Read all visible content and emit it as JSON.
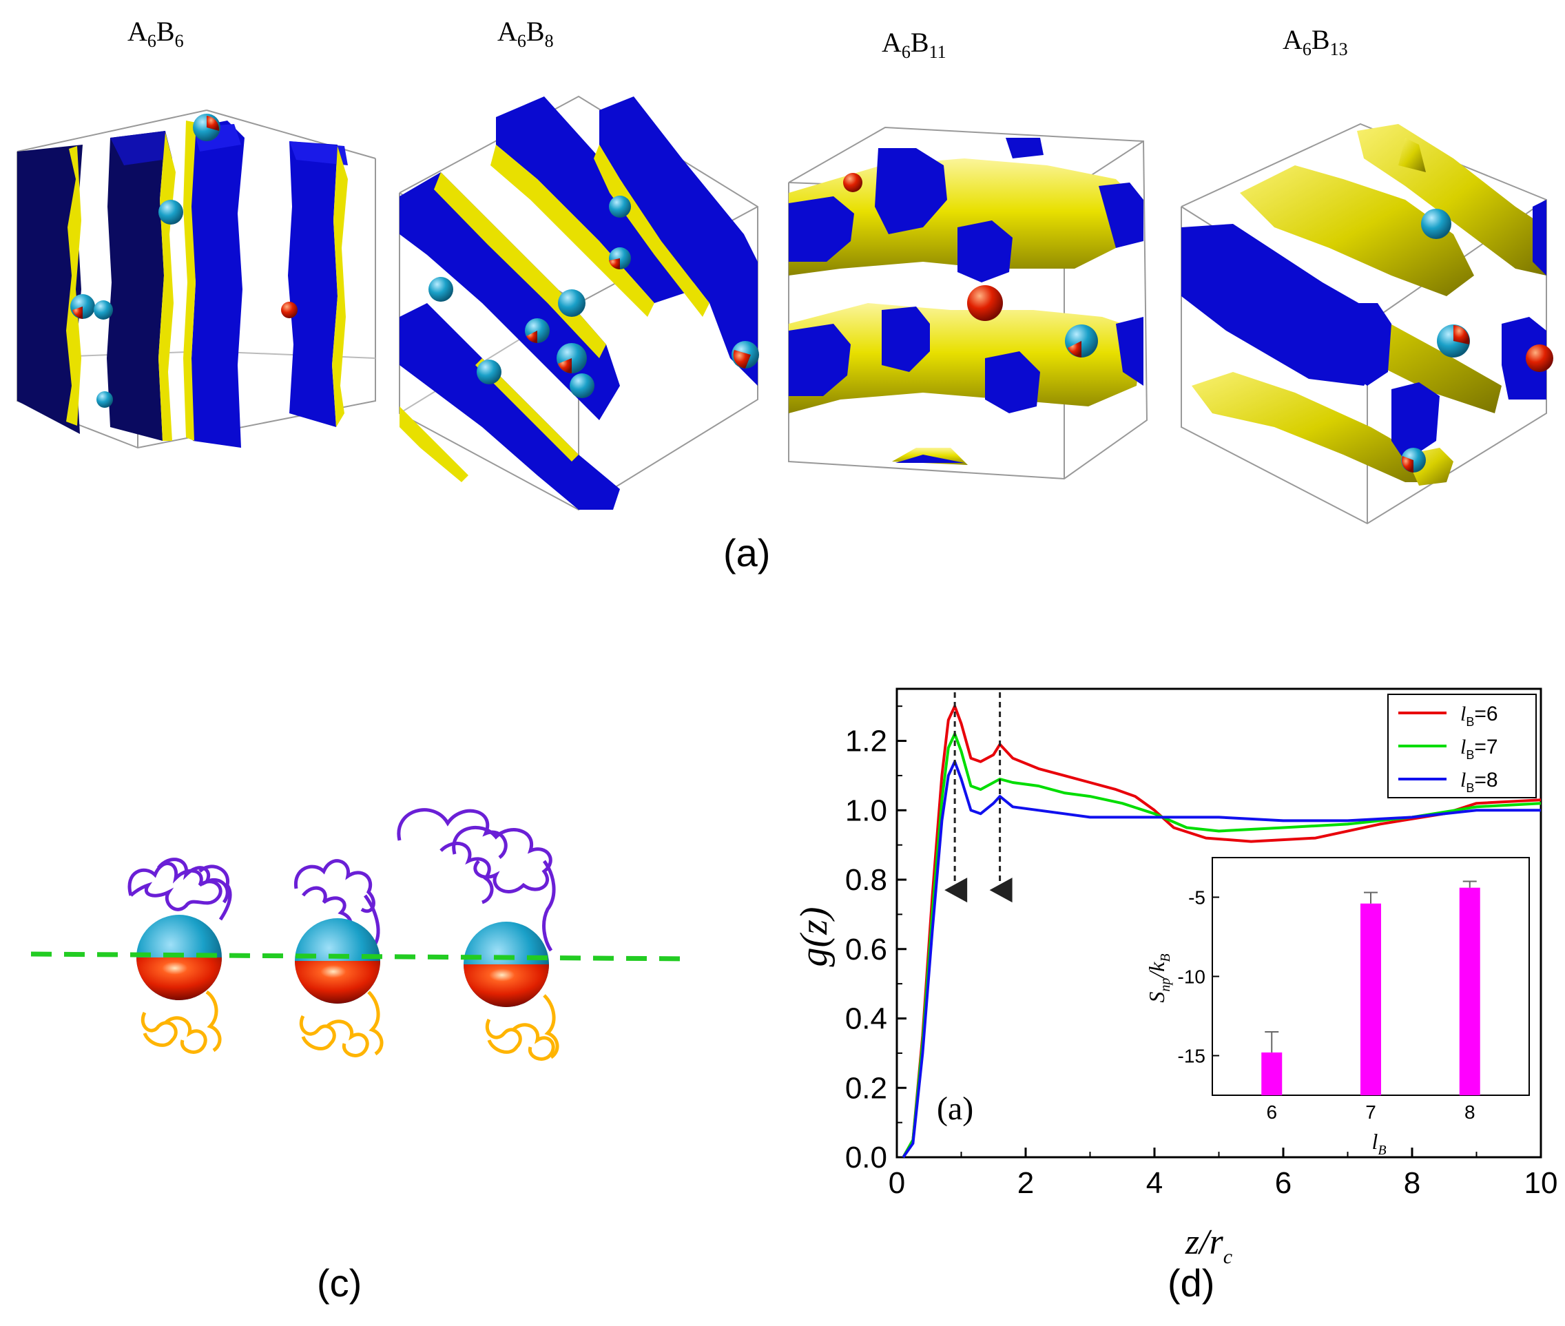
{
  "panel_a": {
    "label": "(a)",
    "snapshots": [
      {
        "base": "A",
        "sub1": "6",
        "mid": "B",
        "sub2": "6"
      },
      {
        "base": "A",
        "sub1": "6",
        "mid": "B",
        "sub2": "8"
      },
      {
        "base": "A",
        "sub1": "6",
        "mid": "B",
        "sub2": "11"
      },
      {
        "base": "A",
        "sub1": "6",
        "mid": "B",
        "sub2": "13"
      }
    ]
  },
  "panel_c": {
    "label": "(c)"
  },
  "panel_d": {
    "label": "(d)"
  },
  "colors": {
    "red": "#e8000a",
    "green": "#00dd00",
    "blue": "#1010ee",
    "magenta": "#ff00ff",
    "domain_blue": "#0a0aa8",
    "domain_yellow": "#e8e000",
    "np_cyan": "#1aa0c8",
    "np_red": "#e02000",
    "dash_green": "#22cc22",
    "chain_purple": "#6a1fd6",
    "chain_orange": "#ffb400"
  },
  "chart_data": [
    {
      "type": "line",
      "panel_tag": "(a)",
      "xlabel": "z/r_c",
      "xlabel_main": "z/r",
      "xlabel_sub": "c",
      "ylabel": "g(z)",
      "xlim": [
        0,
        10
      ],
      "ylim": [
        0,
        1.35
      ],
      "xticks": [
        "0",
        "2",
        "4",
        "6",
        "8",
        "10"
      ],
      "yticks": [
        "0.0",
        "0.2",
        "0.4",
        "0.6",
        "0.8",
        "1.0",
        "1.2"
      ],
      "xtick_values": [
        0,
        2,
        4,
        6,
        8,
        10
      ],
      "ytick_values": [
        0,
        0.2,
        0.4,
        0.6,
        0.8,
        1.0,
        1.2
      ],
      "arrows_x": [
        0.9,
        1.6
      ],
      "legend": [
        {
          "main": "l",
          "sub": "B",
          "value": "=6"
        },
        {
          "main": "l",
          "sub": "B",
          "value": "=7"
        },
        {
          "main": "l",
          "sub": "B",
          "value": "=8"
        }
      ],
      "series": [
        {
          "name": "lB=6",
          "color": "#e8000a",
          "points": [
            [
              0.1,
              0
            ],
            [
              0.25,
              0.05
            ],
            [
              0.4,
              0.35
            ],
            [
              0.55,
              0.75
            ],
            [
              0.7,
              1.1
            ],
            [
              0.8,
              1.26
            ],
            [
              0.9,
              1.3
            ],
            [
              1.0,
              1.25
            ],
            [
              1.15,
              1.15
            ],
            [
              1.3,
              1.14
            ],
            [
              1.5,
              1.16
            ],
            [
              1.6,
              1.19
            ],
            [
              1.8,
              1.15
            ],
            [
              2.2,
              1.12
            ],
            [
              2.6,
              1.1
            ],
            [
              3.0,
              1.08
            ],
            [
              3.4,
              1.06
            ],
            [
              3.7,
              1.04
            ],
            [
              4.0,
              1.0
            ],
            [
              4.3,
              0.95
            ],
            [
              4.8,
              0.92
            ],
            [
              5.5,
              0.91
            ],
            [
              6.5,
              0.92
            ],
            [
              7.5,
              0.96
            ],
            [
              8.5,
              0.99
            ],
            [
              9.0,
              1.02
            ],
            [
              10.0,
              1.03
            ]
          ]
        },
        {
          "name": "lB=7",
          "color": "#00dd00",
          "points": [
            [
              0.1,
              0
            ],
            [
              0.25,
              0.05
            ],
            [
              0.4,
              0.33
            ],
            [
              0.55,
              0.7
            ],
            [
              0.7,
              1.03
            ],
            [
              0.8,
              1.18
            ],
            [
              0.9,
              1.22
            ],
            [
              1.0,
              1.17
            ],
            [
              1.15,
              1.07
            ],
            [
              1.3,
              1.06
            ],
            [
              1.5,
              1.08
            ],
            [
              1.6,
              1.09
            ],
            [
              1.8,
              1.08
            ],
            [
              2.2,
              1.07
            ],
            [
              2.6,
              1.05
            ],
            [
              3.0,
              1.04
            ],
            [
              3.5,
              1.02
            ],
            [
              4.0,
              0.99
            ],
            [
              4.5,
              0.95
            ],
            [
              5.0,
              0.94
            ],
            [
              6.0,
              0.95
            ],
            [
              7.0,
              0.96
            ],
            [
              8.0,
              0.98
            ],
            [
              9.0,
              1.01
            ],
            [
              10.0,
              1.02
            ]
          ]
        },
        {
          "name": "lB=8",
          "color": "#1010ee",
          "points": [
            [
              0.1,
              0
            ],
            [
              0.25,
              0.04
            ],
            [
              0.4,
              0.3
            ],
            [
              0.55,
              0.65
            ],
            [
              0.7,
              0.97
            ],
            [
              0.8,
              1.1
            ],
            [
              0.9,
              1.14
            ],
            [
              1.0,
              1.09
            ],
            [
              1.15,
              1.0
            ],
            [
              1.3,
              0.99
            ],
            [
              1.5,
              1.02
            ],
            [
              1.6,
              1.04
            ],
            [
              1.8,
              1.01
            ],
            [
              2.2,
              1.0
            ],
            [
              2.6,
              0.99
            ],
            [
              3.0,
              0.98
            ],
            [
              3.5,
              0.98
            ],
            [
              4.0,
              0.98
            ],
            [
              4.5,
              0.98
            ],
            [
              5.0,
              0.98
            ],
            [
              6.0,
              0.97
            ],
            [
              7.0,
              0.97
            ],
            [
              8.0,
              0.98
            ],
            [
              9.0,
              1.0
            ],
            [
              10.0,
              1.0
            ]
          ]
        }
      ]
    },
    {
      "type": "bar",
      "inset": true,
      "categories": [
        "6",
        "7",
        "8"
      ],
      "values": [
        -14.8,
        -5.4,
        -4.4
      ],
      "errors": [
        1.3,
        0.7,
        0.4
      ],
      "color": "#ff00ff",
      "xlabel": "l_B",
      "xlabel_main": "l",
      "xlabel_sub": "B",
      "ylabel": "S_np/k_B",
      "ylabel_S": "S",
      "ylabel_np": "np",
      "ylabel_k": "k",
      "ylabel_B": "B",
      "ylim": [
        -17.5,
        -2.5
      ],
      "yticks": [
        "-5",
        "-10",
        "-15"
      ],
      "ytick_values": [
        -5,
        -10,
        -15
      ]
    }
  ]
}
